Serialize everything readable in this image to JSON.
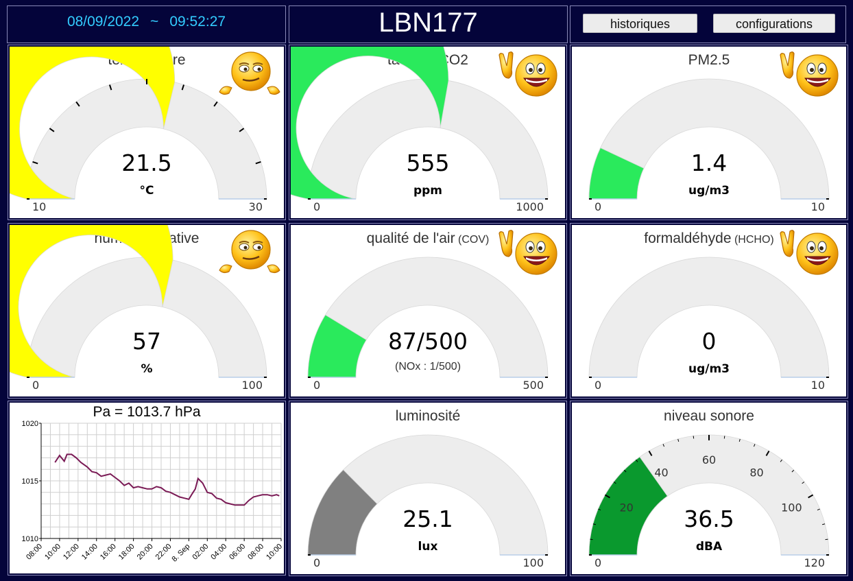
{
  "header": {
    "date": "08/09/2022",
    "separator": "~",
    "time": "09:52:27",
    "station": "LBN177",
    "buttons": {
      "history": "historiques",
      "config": "configurations"
    }
  },
  "gauges": [
    {
      "id": "temperature",
      "title": "température",
      "title_small": "",
      "value": 21.5,
      "display": "21.5",
      "unit": "°C",
      "sub": "",
      "min": 10,
      "max": 30,
      "color": "#ffff00",
      "ticks": true,
      "smiley": "unsure-smiley-icon"
    },
    {
      "id": "co2",
      "title": "taux de CO2",
      "title_small": "",
      "value": 555,
      "display": "555",
      "unit": "ppm",
      "sub": "",
      "min": 0,
      "max": 1000,
      "color": "#2aea5c",
      "ticks": false,
      "smiley": "happy-smiley-icon"
    },
    {
      "id": "pm25",
      "title": "PM2.5",
      "title_small": "",
      "value": 1.4,
      "display": "1.4",
      "unit": "ug/m3",
      "sub": "",
      "min": 0,
      "max": 10,
      "color": "#2aea5c",
      "ticks": false,
      "smiley": "happy-smiley-icon"
    },
    {
      "id": "humidity",
      "title": "humidité relative",
      "title_small": "",
      "value": 57,
      "display": "57",
      "unit": "%",
      "sub": "",
      "min": 0,
      "max": 100,
      "color": "#ffff00",
      "ticks": false,
      "smiley": "unsure-smiley-icon"
    },
    {
      "id": "cov",
      "title": "qualité de l'air",
      "title_small": "(COV)",
      "value": 87,
      "display": "87/500",
      "unit": "",
      "sub": "(NOx : 1/500)",
      "min": 0,
      "max": 500,
      "color": "#2aea5c",
      "ticks": false,
      "smiley": "happy-smiley-icon"
    },
    {
      "id": "hcho",
      "title": "formaldéhyde",
      "title_small": "(HCHO)",
      "value": 0,
      "display": "0",
      "unit": "ug/m3",
      "sub": "",
      "min": 0,
      "max": 10,
      "color": "#2aea5c",
      "ticks": false,
      "smiley": "happy-smiley-icon"
    },
    {
      "id": "lux",
      "title": "luminosité",
      "title_small": "",
      "value": 25.1,
      "display": "25.1",
      "unit": "lux",
      "sub": "",
      "min": 0,
      "max": 100,
      "color": "#808080",
      "ticks": false,
      "smiley": ""
    },
    {
      "id": "sound",
      "title": "niveau sonore",
      "title_small": "",
      "value": 36.5,
      "display": "36.5",
      "unit": "dBA",
      "sub": "",
      "min": 0,
      "max": 120,
      "color": "#0a992e",
      "ticks": true,
      "tick_labels": [
        "20",
        "40",
        "60",
        "80",
        "100"
      ],
      "smiley": ""
    }
  ],
  "chart_data": {
    "type": "line",
    "title": "Pa = 1013.7 hPa",
    "ylim": [
      1010,
      1020
    ],
    "yticks": [
      "1010",
      "1015",
      "1020"
    ],
    "xticks": [
      "08:00",
      "10:00",
      "12:00",
      "14:00",
      "16:00",
      "18:00",
      "20:00",
      "22:00",
      "8. Sep",
      "02:00",
      "04:00",
      "06:00",
      "08:00",
      "10:00"
    ],
    "xlim": [
      0,
      26
    ],
    "line_color": "#7a1a55",
    "series": [
      {
        "x": [
          1.5,
          2,
          2.5,
          2.8,
          3.3,
          3.8,
          4.3,
          5,
          5.5,
          6,
          6.5,
          7,
          7.5,
          8,
          8.5,
          9,
          9.5,
          10,
          10.5,
          11,
          11.5,
          12,
          12.5,
          13,
          13.5,
          14,
          14.5,
          15,
          15.5,
          16,
          16.3,
          16.7,
          17,
          17.5,
          18,
          18.5,
          19,
          19.5,
          20,
          20.5,
          21,
          21.5,
          22,
          22.5,
          23,
          23.5,
          24,
          24.5,
          25,
          25.5,
          25.8
        ],
        "y": [
          1016.6,
          1017.2,
          1016.7,
          1017.3,
          1017.3,
          1017.0,
          1016.6,
          1016.2,
          1015.8,
          1015.7,
          1015.4,
          1015.5,
          1015.6,
          1015.3,
          1015.0,
          1014.6,
          1014.8,
          1014.4,
          1014.5,
          1014.4,
          1014.3,
          1014.3,
          1014.5,
          1014.4,
          1014.1,
          1014.0,
          1013.8,
          1013.6,
          1013.5,
          1013.4,
          1013.8,
          1014.3,
          1015.2,
          1014.8,
          1014.0,
          1013.9,
          1013.5,
          1013.4,
          1013.1,
          1013.0,
          1012.9,
          1012.9,
          1012.9,
          1013.3,
          1013.6,
          1013.7,
          1013.8,
          1013.8,
          1013.7,
          1013.8,
          1013.7
        ]
      }
    ]
  }
}
